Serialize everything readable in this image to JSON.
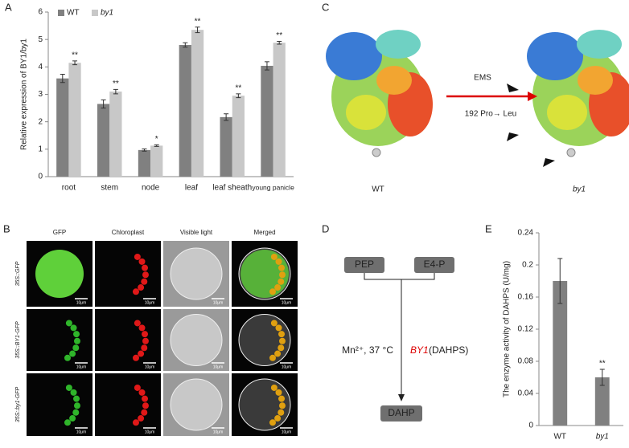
{
  "panels": {
    "a": "A",
    "b": "B",
    "c": "C",
    "d": "D",
    "e": "E"
  },
  "chart_data": [
    {
      "type": "bar",
      "ylabel": "Relative expression of BY1/by1",
      "categories": [
        "root",
        "stem",
        "node",
        "leaf",
        "leaf sheath",
        "young panicle"
      ],
      "series": [
        {
          "name": "WT",
          "color": "#808080",
          "values": [
            3.58,
            2.65,
            0.97,
            4.8,
            2.17,
            4.04
          ],
          "errors": [
            0.15,
            0.15,
            0.04,
            0.08,
            0.12,
            0.15
          ]
        },
        {
          "name": "by1",
          "color": "#c8c8c8",
          "values": [
            4.15,
            3.1,
            1.13,
            5.35,
            2.95,
            4.88
          ],
          "errors": [
            0.07,
            0.08,
            0.03,
            0.1,
            0.07,
            0.05
          ],
          "significance": [
            "**",
            "**",
            "*",
            "**",
            "**",
            "**"
          ]
        }
      ],
      "ylim": [
        0,
        6
      ],
      "yticks": [
        0,
        1,
        2,
        3,
        4,
        5,
        6
      ],
      "legend": "top-left"
    },
    {
      "type": "bar",
      "ylabel": "The enzyme activity of DAHPS (U/mg)",
      "categories": [
        "WT",
        "by1"
      ],
      "series": [
        {
          "name": "DAHPS activity",
          "color": "#808080",
          "values": [
            0.18,
            0.06
          ],
          "errors": [
            0.028,
            0.01
          ],
          "significance": [
            null,
            "**"
          ]
        }
      ],
      "ylim": [
        0,
        0.24
      ],
      "yticks": [
        0,
        0.04,
        0.08,
        0.12,
        0.16,
        0.2,
        0.24
      ]
    }
  ],
  "protein": {
    "mutagen": "EMS",
    "mutation": "192 Pro→ Leu",
    "left_label": "WT",
    "right_label": "by1"
  },
  "microscopy": {
    "columns": [
      "GFP",
      "Chloroplast",
      "Visible light",
      "Merged"
    ],
    "rows": [
      "35S::GFP",
      "35S::BY1-GFP",
      "35S::by1-GFP"
    ],
    "scale_bar": "10μm"
  },
  "pathway": {
    "substrate_1": "PEP",
    "substrate_2": "E4-P",
    "product": "DAHP",
    "conditions": "Mn²⁺, 37 °C",
    "enzyme": "BY1",
    "enzyme_note": "(DAHPS)"
  }
}
